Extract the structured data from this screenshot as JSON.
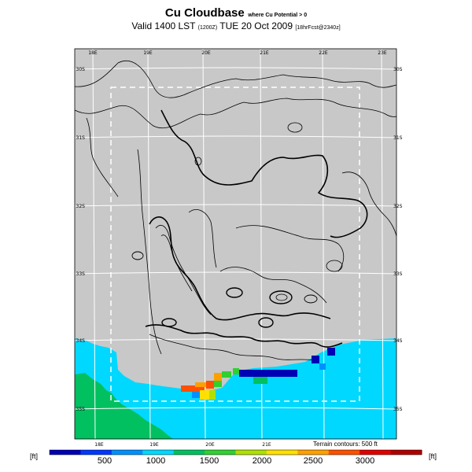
{
  "header": {
    "title": "Cu Cloudbase",
    "title_note": "where Cu Potential > 0",
    "subtitle_main": "Valid 1400 LST",
    "subtitle_code": "(1200Z)",
    "subtitle_date": "TUE 20 Oct 2009",
    "subtitle_run": "[18hrFcst@2340z]"
  },
  "map": {
    "land_color": "#c8c8c8",
    "sea_color": "#00d8ff",
    "low_color": "#00c060",
    "lon_labels_top": [
      "18E",
      "19E",
      "20E",
      "21E",
      "22E",
      "23E"
    ],
    "lon_labels_bottom": [
      "18E",
      "19E",
      "20E",
      "21E"
    ],
    "lat_labels_left": [
      "30S",
      "31S",
      "32S",
      "33S",
      "34S",
      "35S"
    ],
    "lat_labels_right": [
      "30S",
      "31S",
      "32S",
      "33S",
      "34S",
      "35S"
    ],
    "terrain_note": "Terrain contours: 500 ft"
  },
  "colorbar": {
    "unit_left": "[ft]",
    "unit_right": "[ft]",
    "ticks": [
      "500",
      "1000",
      "1500",
      "2000",
      "2500",
      "3000"
    ],
    "colors": [
      "#0000b4",
      "#0038ff",
      "#0090ff",
      "#00d8ff",
      "#00c060",
      "#30d030",
      "#b0e000",
      "#ffe000",
      "#ffa000",
      "#ff5000",
      "#e00000",
      "#b00000"
    ]
  }
}
